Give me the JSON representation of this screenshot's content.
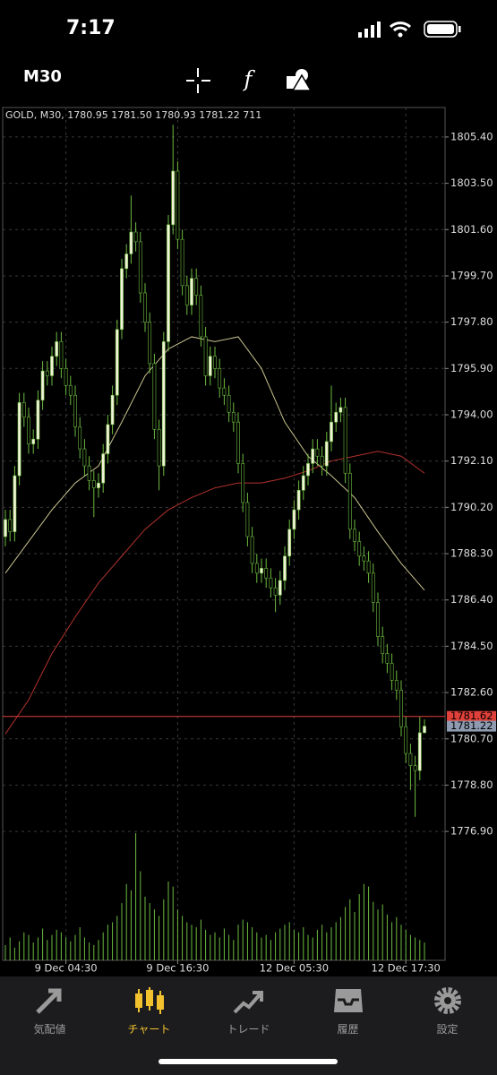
{
  "status_bar": {
    "time": "7:17"
  },
  "toolbar": {
    "timeframe": "M30"
  },
  "tabs": [
    "気配値",
    "チャート",
    "トレード",
    "履歴",
    "設定"
  ],
  "chart_data": {
    "type": "candlestick",
    "header": "GOLD, M30, 1780.95 1781.50 1780.93 1781.22 711",
    "up_color": "#f2f2d8",
    "down_color": "#000000",
    "outline_color": "#6dbb3f",
    "open": [
      1789.0,
      1789.7,
      1789.2,
      1791.5,
      1794.5,
      1793.9,
      1792.8,
      1793.0,
      1794.6,
      1795.8,
      1795.6,
      1796.4,
      1797.0,
      1795.9,
      1795.2,
      1794.8,
      1793.5,
      1792.6,
      1791.9,
      1791.3,
      1791.0,
      1791.2,
      1792.4,
      1793.6,
      1794.8,
      1797.5,
      1800.0,
      1800.6,
      1801.5,
      1801.1,
      1799.0,
      1797.8,
      1796.1,
      1793.4,
      1791.9,
      1797.0,
      1801.8,
      1804.0,
      1801.2,
      1799.3,
      1798.5,
      1799.6,
      1798.9,
      1797.2,
      1795.6,
      1796.4,
      1795.9,
      1795.1,
      1794.8,
      1794.1,
      1793.7,
      1792.0,
      1790.4,
      1789.0,
      1787.9,
      1787.5,
      1787.7,
      1787.3,
      1786.9,
      1786.6,
      1787.2,
      1788.2,
      1789.3,
      1790.1,
      1790.9,
      1791.5,
      1792.0,
      1792.6,
      1792.3,
      1791.9,
      1792.9,
      1793.7,
      1794.1,
      1794.3,
      1791.6,
      1789.3,
      1788.8,
      1788.2,
      1788.0,
      1787.5,
      1786.3,
      1784.9,
      1784.2,
      1783.8,
      1783.1,
      1782.7,
      1781.2,
      1780.1,
      1779.6,
      1779.4,
      1780.95
    ],
    "high": [
      1790.1,
      1790.1,
      1791.9,
      1794.9,
      1794.9,
      1794.3,
      1793.4,
      1795.0,
      1796.2,
      1796.2,
      1796.8,
      1797.4,
      1797.4,
      1796.3,
      1795.6,
      1795.2,
      1793.9,
      1793.0,
      1792.3,
      1791.7,
      1791.6,
      1792.8,
      1794.0,
      1795.2,
      1797.9,
      1800.4,
      1801.0,
      1803.0,
      1801.9,
      1801.5,
      1799.4,
      1798.2,
      1796.5,
      1793.8,
      1797.4,
      1802.2,
      1805.9,
      1804.4,
      1801.6,
      1799.7,
      1800.0,
      1800.0,
      1799.3,
      1797.6,
      1796.8,
      1796.8,
      1796.3,
      1795.5,
      1795.2,
      1794.5,
      1794.1,
      1792.4,
      1790.8,
      1789.4,
      1788.3,
      1788.1,
      1788.1,
      1787.7,
      1787.3,
      1787.6,
      1788.6,
      1789.7,
      1790.5,
      1791.3,
      1791.9,
      1792.4,
      1793.0,
      1793.0,
      1792.7,
      1793.3,
      1795.2,
      1794.5,
      1794.7,
      1794.7,
      1792.0,
      1789.7,
      1789.2,
      1788.6,
      1788.4,
      1787.9,
      1786.7,
      1785.3,
      1784.6,
      1784.2,
      1783.5,
      1783.1,
      1781.6,
      1780.5,
      1780.0,
      1781.6,
      1781.5
    ],
    "low": [
      1788.6,
      1788.8,
      1788.8,
      1791.1,
      1793.5,
      1792.4,
      1792.4,
      1792.6,
      1794.2,
      1795.2,
      1795.2,
      1796.0,
      1795.5,
      1794.8,
      1794.4,
      1793.1,
      1792.2,
      1791.5,
      1790.9,
      1789.8,
      1790.6,
      1790.8,
      1792.0,
      1793.2,
      1794.4,
      1797.1,
      1799.6,
      1800.2,
      1800.7,
      1798.6,
      1797.4,
      1795.7,
      1793.0,
      1790.9,
      1791.5,
      1796.6,
      1801.4,
      1800.8,
      1798.9,
      1798.1,
      1798.1,
      1798.5,
      1796.8,
      1795.2,
      1795.2,
      1795.5,
      1794.7,
      1794.4,
      1793.7,
      1793.3,
      1791.6,
      1790.0,
      1788.6,
      1787.5,
      1787.1,
      1787.1,
      1786.9,
      1786.5,
      1785.9,
      1786.2,
      1786.8,
      1787.8,
      1788.9,
      1789.7,
      1790.5,
      1791.1,
      1791.6,
      1791.9,
      1791.5,
      1791.5,
      1792.5,
      1793.3,
      1793.7,
      1791.2,
      1788.9,
      1788.4,
      1787.8,
      1787.6,
      1787.1,
      1785.9,
      1784.5,
      1783.8,
      1783.4,
      1782.7,
      1782.3,
      1780.8,
      1779.7,
      1778.6,
      1777.5,
      1779.0,
      1780.93
    ],
    "close": [
      1789.7,
      1789.2,
      1791.5,
      1794.5,
      1793.9,
      1792.8,
      1793.0,
      1794.6,
      1795.8,
      1795.6,
      1796.4,
      1797.0,
      1795.9,
      1795.2,
      1794.8,
      1793.5,
      1792.6,
      1791.9,
      1791.3,
      1791.0,
      1791.2,
      1792.4,
      1793.6,
      1794.8,
      1797.5,
      1800.0,
      1800.6,
      1801.5,
      1801.1,
      1799.0,
      1797.8,
      1796.1,
      1793.4,
      1791.9,
      1797.0,
      1801.8,
      1804.0,
      1801.2,
      1799.3,
      1798.5,
      1799.6,
      1798.9,
      1797.2,
      1795.6,
      1796.4,
      1795.9,
      1795.1,
      1794.8,
      1794.1,
      1793.7,
      1792.0,
      1790.4,
      1789.0,
      1787.9,
      1787.5,
      1787.7,
      1787.3,
      1786.9,
      1786.6,
      1787.2,
      1788.2,
      1789.3,
      1790.1,
      1790.9,
      1791.5,
      1792.0,
      1792.6,
      1792.3,
      1791.9,
      1792.9,
      1793.7,
      1794.1,
      1794.3,
      1791.6,
      1789.3,
      1788.8,
      1788.2,
      1788.0,
      1787.5,
      1786.3,
      1784.9,
      1784.2,
      1783.8,
      1783.1,
      1782.7,
      1781.2,
      1780.1,
      1779.6,
      1779.4,
      1780.95,
      1781.22
    ],
    "volume": {
      "color": "#6dbb3f",
      "lim": [
        0,
        100
      ],
      "values": [
        12,
        18,
        10,
        15,
        22,
        20,
        14,
        18,
        25,
        16,
        20,
        24,
        22,
        18,
        15,
        20,
        26,
        18,
        14,
        12,
        16,
        22,
        28,
        30,
        35,
        45,
        60,
        55,
        100,
        70,
        50,
        45,
        40,
        35,
        48,
        62,
        58,
        40,
        35,
        30,
        28,
        26,
        32,
        24,
        20,
        22,
        18,
        25,
        20,
        16,
        28,
        32,
        30,
        26,
        22,
        18,
        20,
        16,
        22,
        25,
        28,
        30,
        24,
        22,
        26,
        20,
        18,
        24,
        28,
        22,
        26,
        30,
        34,
        42,
        48,
        38,
        52,
        60,
        58,
        46,
        40,
        44,
        36,
        30,
        34,
        28,
        24,
        20,
        18,
        16,
        14
      ]
    },
    "moving_averages": [
      {
        "color": "#c9c38f",
        "x": [
          0,
          5,
          10,
          15,
          20,
          25,
          30,
          35,
          40,
          45,
          50,
          55,
          60,
          65,
          70,
          75,
          80,
          85,
          90
        ],
        "values": [
          1787.5,
          1788.8,
          1790.1,
          1791.2,
          1791.9,
          1793.7,
          1795.6,
          1796.7,
          1797.2,
          1797.0,
          1797.2,
          1795.9,
          1793.7,
          1792.3,
          1791.5,
          1790.6,
          1789.2,
          1787.9,
          1786.8
        ]
      },
      {
        "color": "#b0322c",
        "x": [
          0,
          5,
          10,
          15,
          20,
          25,
          30,
          35,
          40,
          45,
          50,
          55,
          60,
          65,
          70,
          75,
          80,
          85,
          90
        ],
        "values": [
          1780.9,
          1782.3,
          1784.2,
          1785.7,
          1787.1,
          1788.2,
          1789.3,
          1790.1,
          1790.6,
          1791.0,
          1791.2,
          1791.2,
          1791.4,
          1791.7,
          1792.1,
          1792.3,
          1792.5,
          1792.3,
          1791.6
        ]
      }
    ],
    "price_lines": [
      {
        "value": 1781.62,
        "color": "#e0403a"
      },
      {
        "value": 1781.22,
        "color": "#8e9bb0"
      }
    ],
    "ylim": [
      1771.61,
      1806.61
    ],
    "yticks": [
      {
        "value": 1805.4,
        "label": "1805.40"
      },
      {
        "value": 1803.5,
        "label": "1803.50"
      },
      {
        "value": 1801.6,
        "label": "1801.60"
      },
      {
        "value": 1799.7,
        "label": "1799.70"
      },
      {
        "value": 1797.8,
        "label": "1797.80"
      },
      {
        "value": 1795.9,
        "label": "1795.90"
      },
      {
        "value": 1794.0,
        "label": "1794.00"
      },
      {
        "value": 1792.1,
        "label": "1792.10"
      },
      {
        "value": 1790.2,
        "label": "1790.20"
      },
      {
        "value": 1788.3,
        "label": "1788.30"
      },
      {
        "value": 1786.4,
        "label": "1786.40"
      },
      {
        "value": 1784.5,
        "label": "1784.50"
      },
      {
        "value": 1782.6,
        "label": "1782.60"
      },
      {
        "value": 1780.7,
        "label": "1780.70"
      },
      {
        "value": 1778.8,
        "label": "1778.80"
      },
      {
        "value": 1776.9,
        "label": "1776.90"
      }
    ],
    "xticks": [
      {
        "value": 13,
        "label": "9 Dec 04:30"
      },
      {
        "value": 37,
        "label": "9 Dec 16:30"
      },
      {
        "value": 62,
        "label": "12 Dec 05:30"
      },
      {
        "value": 86,
        "label": "12 Dec 17:30"
      }
    ],
    "grid": true
  }
}
